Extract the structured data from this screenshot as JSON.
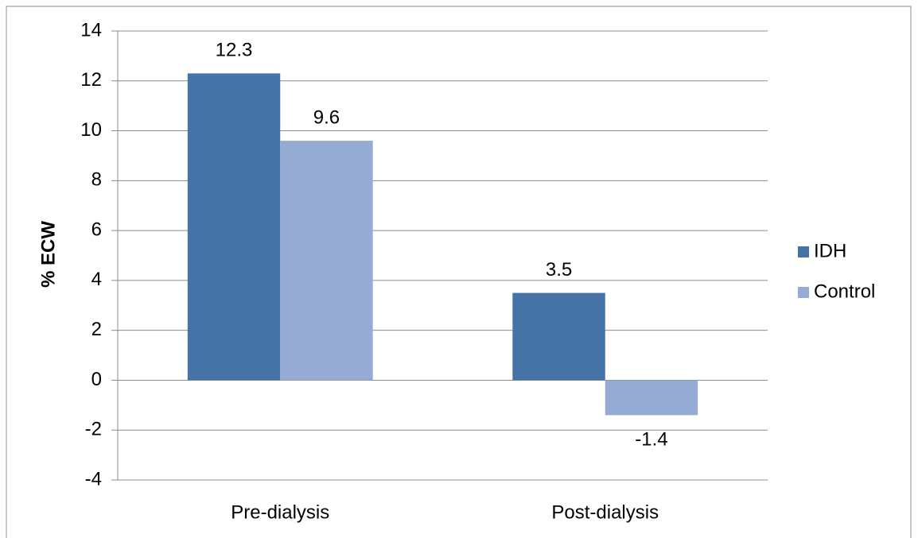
{
  "chart_data": {
    "type": "bar",
    "y_label": "% ECW",
    "categories": [
      "Pre-dialysis",
      "Post-dialysis"
    ],
    "series": [
      {
        "name": "IDH",
        "color": "#4572a7",
        "values": [
          12.3,
          3.5
        ]
      },
      {
        "name": "Control",
        "color": "#96abd3",
        "values": [
          9.6,
          -1.4
        ]
      }
    ],
    "ylim": [
      -4,
      14
    ],
    "yticks": [
      -4,
      -2,
      0,
      2,
      4,
      6,
      8,
      10,
      12,
      14
    ],
    "grid": true,
    "legend": "right"
  }
}
